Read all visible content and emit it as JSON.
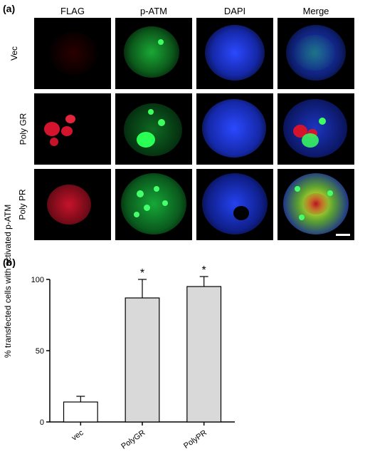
{
  "panelA": {
    "label": "(a)",
    "columns": [
      "FLAG",
      "p-ATM",
      "DAPI",
      "Merge"
    ],
    "rows": [
      "Vec",
      "Poly GR",
      "Poly PR"
    ],
    "channel_colors": {
      "FLAG": "#c7132a",
      "p-ATM": "#18d043",
      "DAPI": "#1838d8",
      "Merge_yellow": "#d9e628"
    },
    "background": "#000000",
    "scalebar_color": "#ffffff"
  },
  "panelB": {
    "label": "(b)",
    "type": "bar",
    "ylabel": "% transfected cells with activated p-ATM",
    "categories": [
      "vec",
      "PolyGR",
      "PolyPR"
    ],
    "values": [
      14,
      87,
      95
    ],
    "errors": [
      4,
      13,
      7
    ],
    "significance": [
      "",
      "*",
      "*"
    ],
    "bar_fill": [
      "#ffffff",
      "#d9d9d9",
      "#d9d9d9"
    ],
    "bar_stroke": "#000000",
    "ylim": [
      0,
      100
    ],
    "ytick_step": 50,
    "bar_width": 0.55,
    "axis_color": "#000000",
    "sig_fontsize": 16,
    "label_fontsize": 12,
    "background_color": "#ffffff"
  }
}
